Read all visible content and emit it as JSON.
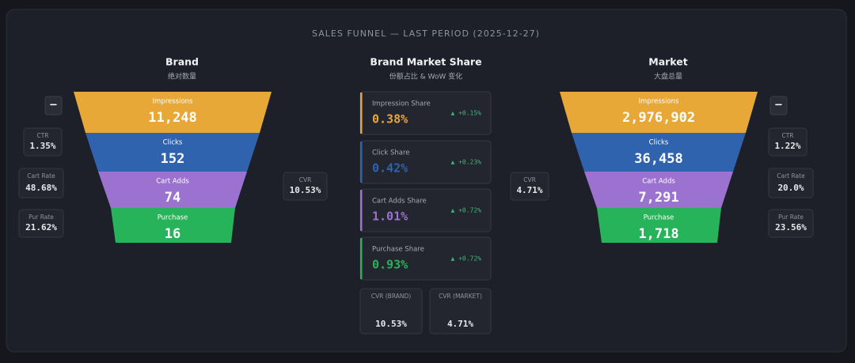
{
  "title": "SALES FUNNEL — LAST PERIOD (2025-12-27)",
  "brand": {
    "title": "Brand",
    "subtitle": "绝对数量",
    "toggle": "−",
    "stages": [
      {
        "label": "Impressions",
        "value": "11,248"
      },
      {
        "label": "Clicks",
        "value": "152"
      },
      {
        "label": "Cart Adds",
        "value": "74"
      },
      {
        "label": "Purchase",
        "value": "16"
      }
    ],
    "rates": [
      {
        "label": "CTR",
        "value": "1.35%"
      },
      {
        "label": "Cart Rate",
        "value": "48.68%"
      },
      {
        "label": "Pur Rate",
        "value": "21.62%"
      }
    ],
    "cvr": {
      "label": "CVR",
      "value": "10.53%"
    }
  },
  "share": {
    "title": "Brand Market Share",
    "subtitle": "份额占比 & WoW 变化",
    "cards": [
      {
        "label": "Impression Share",
        "value": "0.38%",
        "change": "▲ +0.15%"
      },
      {
        "label": "Click Share",
        "value": "0.42%",
        "change": "▲ +0.23%"
      },
      {
        "label": "Cart Adds Share",
        "value": "1.01%",
        "change": "▲ +0.72%"
      },
      {
        "label": "Purchase Share",
        "value": "0.93%",
        "change": "▲ +0.72%"
      }
    ],
    "summary": [
      {
        "label": "CVR (BRAND)",
        "value": "10.53%"
      },
      {
        "label": "CVR (MARKET)",
        "value": "4.71%"
      }
    ]
  },
  "market": {
    "title": "Market",
    "subtitle": "大盘总量",
    "toggle": "−",
    "stages": [
      {
        "label": "Impressions",
        "value": "2,976,902"
      },
      {
        "label": "Clicks",
        "value": "36,458"
      },
      {
        "label": "Cart Adds",
        "value": "7,291"
      },
      {
        "label": "Purchase",
        "value": "1,718"
      }
    ],
    "rates": [
      {
        "label": "CTR",
        "value": "1.22%"
      },
      {
        "label": "Cart Rate",
        "value": "20.0%"
      },
      {
        "label": "Pur Rate",
        "value": "23.56%"
      }
    ],
    "cvr": {
      "label": "CVR",
      "value": "4.71%"
    }
  }
}
